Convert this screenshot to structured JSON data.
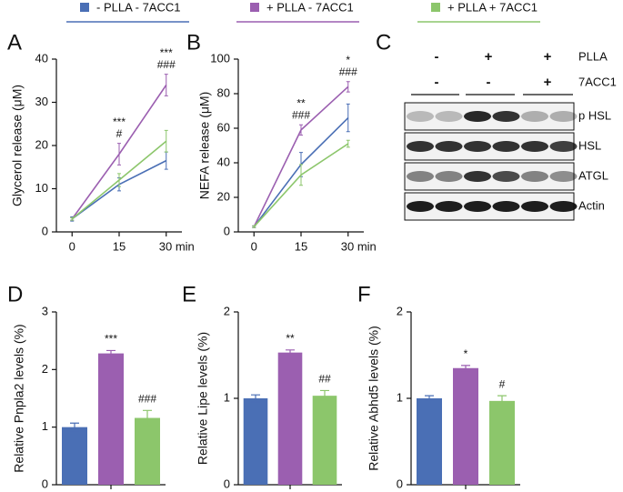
{
  "chart_data": [
    {
      "panel": "A",
      "type": "line",
      "ylabel": "Glycerol release (μM)",
      "x": [
        0,
        15,
        30
      ],
      "xlim": [
        -5,
        35
      ],
      "xticks": [
        0,
        15,
        {
          "value": 30,
          "label": "30 min"
        }
      ],
      "ylim": [
        0,
        40
      ],
      "yticks": [
        0,
        10,
        20,
        30,
        40
      ],
      "legend": "top",
      "series": [
        {
          "name": "- PLLA - 7ACC1",
          "color": "#4a6fb5",
          "values": [
            3,
            11,
            16.5
          ],
          "errors": [
            0.5,
            1.5,
            2
          ]
        },
        {
          "name": "+ PLLA - 7ACC1",
          "color": "#9b5fb0",
          "values": [
            3,
            18,
            34
          ],
          "errors": [
            0.3,
            2.5,
            2.5
          ],
          "annotations": [
            null,
            [
              "***",
              "#"
            ],
            [
              "***",
              "###"
            ]
          ]
        },
        {
          "name": "+ PLLA + 7ACC1",
          "color": "#8cc66b",
          "values": [
            3,
            12,
            21
          ],
          "errors": [
            0.3,
            1.5,
            2.5
          ]
        }
      ]
    },
    {
      "panel": "B",
      "type": "line",
      "ylabel": "NEFA release (μM)",
      "x": [
        0,
        15,
        30
      ],
      "xlim": [
        -5,
        35
      ],
      "xticks": [
        0,
        15,
        {
          "value": 30,
          "label": "30 min"
        }
      ],
      "ylim": [
        0,
        100
      ],
      "yticks": [
        0,
        20,
        40,
        60,
        80,
        100
      ],
      "series": [
        {
          "color": "#4a6fb5",
          "values": [
            3,
            39,
            66
          ],
          "errors": [
            0.5,
            7,
            8
          ]
        },
        {
          "color": "#9b5fb0",
          "values": [
            3,
            59,
            84
          ],
          "errors": [
            0.5,
            3,
            3
          ],
          "annotations": [
            null,
            [
              "**",
              "###"
            ],
            [
              "*",
              "###"
            ]
          ]
        },
        {
          "color": "#8cc66b",
          "values": [
            3,
            33,
            51
          ],
          "errors": [
            0.5,
            6,
            2
          ]
        }
      ]
    },
    {
      "panel": "D",
      "type": "bar",
      "ylabel": "Relative Pnpla2 levels (%)",
      "categories": [
        null,
        null,
        null
      ],
      "values": [
        1,
        2.28,
        1.16
      ],
      "errors": [
        0.07,
        0.05,
        0.13
      ],
      "annotations": [
        null,
        "***",
        "###"
      ],
      "colors": [
        "#4a6fb5",
        "#9b5fb0",
        "#8cc66b"
      ],
      "ylim": [
        0,
        3
      ],
      "yticks": [
        0,
        1,
        2,
        3
      ]
    },
    {
      "panel": "E",
      "type": "bar",
      "ylabel": "Relative Lipe levels (%)",
      "categories": [
        null,
        null,
        null
      ],
      "values": [
        1,
        1.53,
        1.03
      ],
      "errors": [
        0.04,
        0.03,
        0.06
      ],
      "annotations": [
        null,
        "**",
        "##"
      ],
      "colors": [
        "#4a6fb5",
        "#9b5fb0",
        "#8cc66b"
      ],
      "ylim": [
        0,
        2
      ],
      "yticks": [
        0,
        1,
        2
      ]
    },
    {
      "panel": "F",
      "type": "bar",
      "ylabel": "Relative Abhd5 levels (%)",
      "categories": [
        null,
        null,
        null
      ],
      "values": [
        1,
        1.35,
        0.97
      ],
      "errors": [
        0.03,
        0.03,
        0.06
      ],
      "annotations": [
        null,
        "*",
        "#"
      ],
      "colors": [
        "#4a6fb5",
        "#9b5fb0",
        "#8cc66b"
      ],
      "ylim": [
        0,
        2
      ],
      "yticks": [
        0,
        1,
        2
      ]
    }
  ],
  "blot": {
    "panel": "C",
    "treatments": [
      {
        "name": "PLLA",
        "signs": [
          "-",
          "+",
          "+"
        ]
      },
      {
        "name": "7ACC1",
        "signs": [
          "-",
          "-",
          "+"
        ]
      }
    ],
    "rows": [
      "p HSL",
      "HSL",
      "ATGL",
      "Actin"
    ]
  }
}
